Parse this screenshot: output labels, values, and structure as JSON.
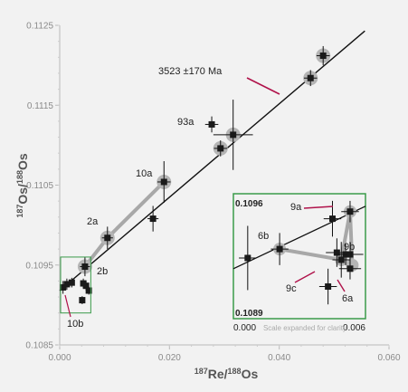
{
  "chart_data": {
    "type": "scatter",
    "xlabel": {
      "sup1": "187",
      "base1": "Re",
      "sup2": "188",
      "base2": "Os"
    },
    "ylabel": {
      "sup1": "187",
      "base1": "Os",
      "sup2": "188",
      "base2": "Os"
    },
    "xlim": [
      0.0,
      0.06
    ],
    "ylim": [
      0.1085,
      0.1125
    ],
    "x_ticks": [
      {
        "value": 0.0,
        "label": "0.000"
      },
      {
        "value": 0.02,
        "label": "0.020"
      },
      {
        "value": 0.04,
        "label": "0.040"
      },
      {
        "value": 0.06,
        "label": "0.060"
      }
    ],
    "y_ticks": [
      {
        "value": 0.1085,
        "label": "0.1085"
      },
      {
        "value": 0.1095,
        "label": "0.1095"
      },
      {
        "value": 0.1105,
        "label": "0.1105"
      },
      {
        "value": 0.1115,
        "label": "0.1115"
      },
      {
        "value": 0.1125,
        "label": "0.1125"
      }
    ],
    "isochron": {
      "x": [
        0.0,
        0.0556
      ],
      "y": [
        0.10918,
        0.11243
      ],
      "label": "3523 ±170 Ma"
    },
    "points": [
      {
        "x": 0.0006,
        "y": 0.10922,
        "ex": 0.0004,
        "ey": 8e-05,
        "label": ""
      },
      {
        "x": 0.0013,
        "y": 0.10926,
        "ex": 0.0003,
        "ey": 7e-05,
        "label": ""
      },
      {
        "x": 0.0022,
        "y": 0.10928,
        "ex": 0.0004,
        "ey": 6e-05,
        "label": ""
      },
      {
        "x": 0.0041,
        "y": 0.10906,
        "ex": 0.0003,
        "ey": 5e-05,
        "label": ""
      },
      {
        "x": 0.0043,
        "y": 0.10927,
        "ex": 0.0003,
        "ey": 6e-05,
        "label": ""
      },
      {
        "x": 0.0048,
        "y": 0.10924,
        "ex": 0.0003,
        "ey": 6e-05,
        "label": ""
      },
      {
        "x": 0.0053,
        "y": 0.10918,
        "ex": 0.0003,
        "ey": 5e-05,
        "label": ""
      },
      {
        "x": 0.0046,
        "y": 0.10948,
        "ex": 0.0009,
        "ey": 0.00012,
        "label": "2b"
      },
      {
        "x": 0.0087,
        "y": 0.10984,
        "ex": 0.001,
        "ey": 0.00014,
        "label": "2a"
      },
      {
        "x": 0.017,
        "y": 0.11008,
        "ex": 0.001,
        "ey": 0.00016,
        "label": ""
      },
      {
        "x": 0.019,
        "y": 0.11054,
        "ex": 0.0012,
        "ey": 0.00026,
        "label": "10a"
      },
      {
        "x": 0.0277,
        "y": 0.11126,
        "ex": 0.0012,
        "ey": 0.0001,
        "label": "93a"
      },
      {
        "x": 0.0293,
        "y": 0.11096,
        "ex": 0.0012,
        "ey": 0.0001,
        "label": ""
      },
      {
        "x": 0.0316,
        "y": 0.11113,
        "ex": 0.0036,
        "ey": 0.00044,
        "label": ""
      },
      {
        "x": 0.0457,
        "y": 0.11184,
        "ex": 0.0012,
        "ey": 0.0001,
        "label": ""
      },
      {
        "x": 0.048,
        "y": 0.11212,
        "ex": 0.0012,
        "ey": 0.00012,
        "label": ""
      }
    ],
    "highlighted": [
      {
        "x": 0.0046,
        "y": 0.10948
      },
      {
        "x": 0.0087,
        "y": 0.10984
      },
      {
        "x": 0.019,
        "y": 0.11054
      },
      {
        "x": 0.0293,
        "y": 0.11096
      },
      {
        "x": 0.0316,
        "y": 0.11113
      },
      {
        "x": 0.0457,
        "y": 0.11184
      },
      {
        "x": 0.048,
        "y": 0.11212
      }
    ],
    "gray_path": [
      {
        "x": 0.0046,
        "y": 0.10948
      },
      {
        "x": 0.0087,
        "y": 0.10984
      },
      {
        "x": 0.019,
        "y": 0.11054
      }
    ],
    "zoom_box": {
      "x": [
        0.0,
        0.0055
      ],
      "y": [
        0.1089,
        0.1096
      ]
    },
    "inset": {
      "xlim": [
        0.0,
        0.006
      ],
      "ylim": [
        0.1089,
        0.1096
      ],
      "caption": "Scale expanded for clarity",
      "tick_labels": {
        "x0": "0.000",
        "x1": "0.006",
        "y0": "0.1089",
        "y1": "0.1096"
      },
      "line": {
        "x": [
          0.0,
          0.006
        ],
        "y": [
          0.10918,
          0.10953
        ]
      },
      "points": [
        {
          "x": 0.00065,
          "y": 0.10924,
          "ex": 0.0004,
          "ey": 0.00018,
          "label": "6b"
        },
        {
          "x": 0.0021,
          "y": 0.10929,
          "ex": 0.0004,
          "ey": 9e-05,
          "label": ""
        },
        {
          "x": 0.0043,
          "y": 0.10908,
          "ex": 0.0004,
          "ey": 0.0001,
          "label": ""
        },
        {
          "x": 0.0045,
          "y": 0.10946,
          "ex": 0.0004,
          "ey": 0.0001,
          "label": "9a"
        },
        {
          "x": 0.0047,
          "y": 0.10927,
          "ex": 0.0005,
          "ey": 8e-05,
          "label": ""
        },
        {
          "x": 0.0049,
          "y": 0.10923,
          "ex": 0.0004,
          "ey": 0.0001,
          "label": "9c"
        },
        {
          "x": 0.0051,
          "y": 0.10926,
          "ex": 0.0004,
          "ey": 6e-05,
          "label": ""
        },
        {
          "x": 0.0053,
          "y": 0.10926,
          "ex": 0.0006,
          "ey": 7e-05,
          "label": "9b"
        },
        {
          "x": 0.0053,
          "y": 0.10918,
          "ex": 0.0005,
          "ey": 6e-05,
          "label": "6a"
        },
        {
          "x": 0.0053,
          "y": 0.1095,
          "ex": 0.0004,
          "ey": 6e-05,
          "label": ""
        }
      ],
      "highlighted": [
        {
          "x": 0.0021,
          "y": 0.10929
        },
        {
          "x": 0.0049,
          "y": 0.10923
        },
        {
          "x": 0.0053,
          "y": 0.1095
        },
        {
          "x": 0.0054,
          "y": 0.1092
        }
      ],
      "gray_path": [
        {
          "x": 0.0021,
          "y": 0.10929
        },
        {
          "x": 0.0049,
          "y": 0.10923
        },
        {
          "x": 0.0053,
          "y": 0.1095
        },
        {
          "x": 0.0054,
          "y": 0.1092
        }
      ]
    },
    "annotation_labels": [
      "10b",
      "2b",
      "2a",
      "10a",
      "93a",
      "3523 ±170 Ma"
    ],
    "colors": {
      "marker": "#1a1a1a",
      "highlight": "#b5b5b5",
      "gray_path": "#a8a8a8",
      "callout": "#b0124a",
      "inset_border": "#3a9b4a",
      "line": "#111111",
      "axis_text": "#8a8a8a"
    }
  }
}
